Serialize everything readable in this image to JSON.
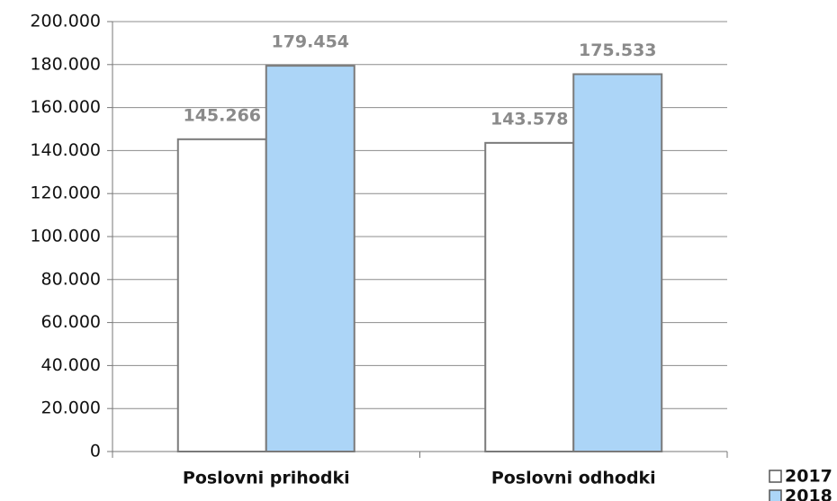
{
  "chart_data": {
    "type": "bar",
    "categories": [
      "Poslovni prihodki",
      "Poslovni odhodki"
    ],
    "series": [
      {
        "name": "2017",
        "color": "#ffffff",
        "values": [
          145266,
          143578
        ],
        "value_labels": [
          "145.266",
          "143.578"
        ]
      },
      {
        "name": "2018",
        "color": "#acd5f7",
        "values": [
          179454,
          175533
        ],
        "value_labels": [
          "179.454",
          "175.533"
        ]
      }
    ],
    "ylim": [
      0,
      200000
    ],
    "yticks": [
      0,
      {
        "value": 20000,
        "label": "20.000"
      },
      {
        "value": 40000,
        "label": "40.000"
      },
      {
        "value": 60000,
        "label": "60.000"
      },
      {
        "value": 80000,
        "label": "80.000"
      },
      {
        "value": 100000,
        "label": "100.000"
      },
      {
        "value": 120000,
        "label": "120.000"
      },
      {
        "value": 140000,
        "label": "140.000"
      },
      {
        "value": 160000,
        "label": "160.000"
      },
      {
        "value": 180000,
        "label": "180.000"
      },
      {
        "value": 200000,
        "label": "200.000"
      }
    ],
    "grid": true,
    "legend": "bottom-right"
  }
}
